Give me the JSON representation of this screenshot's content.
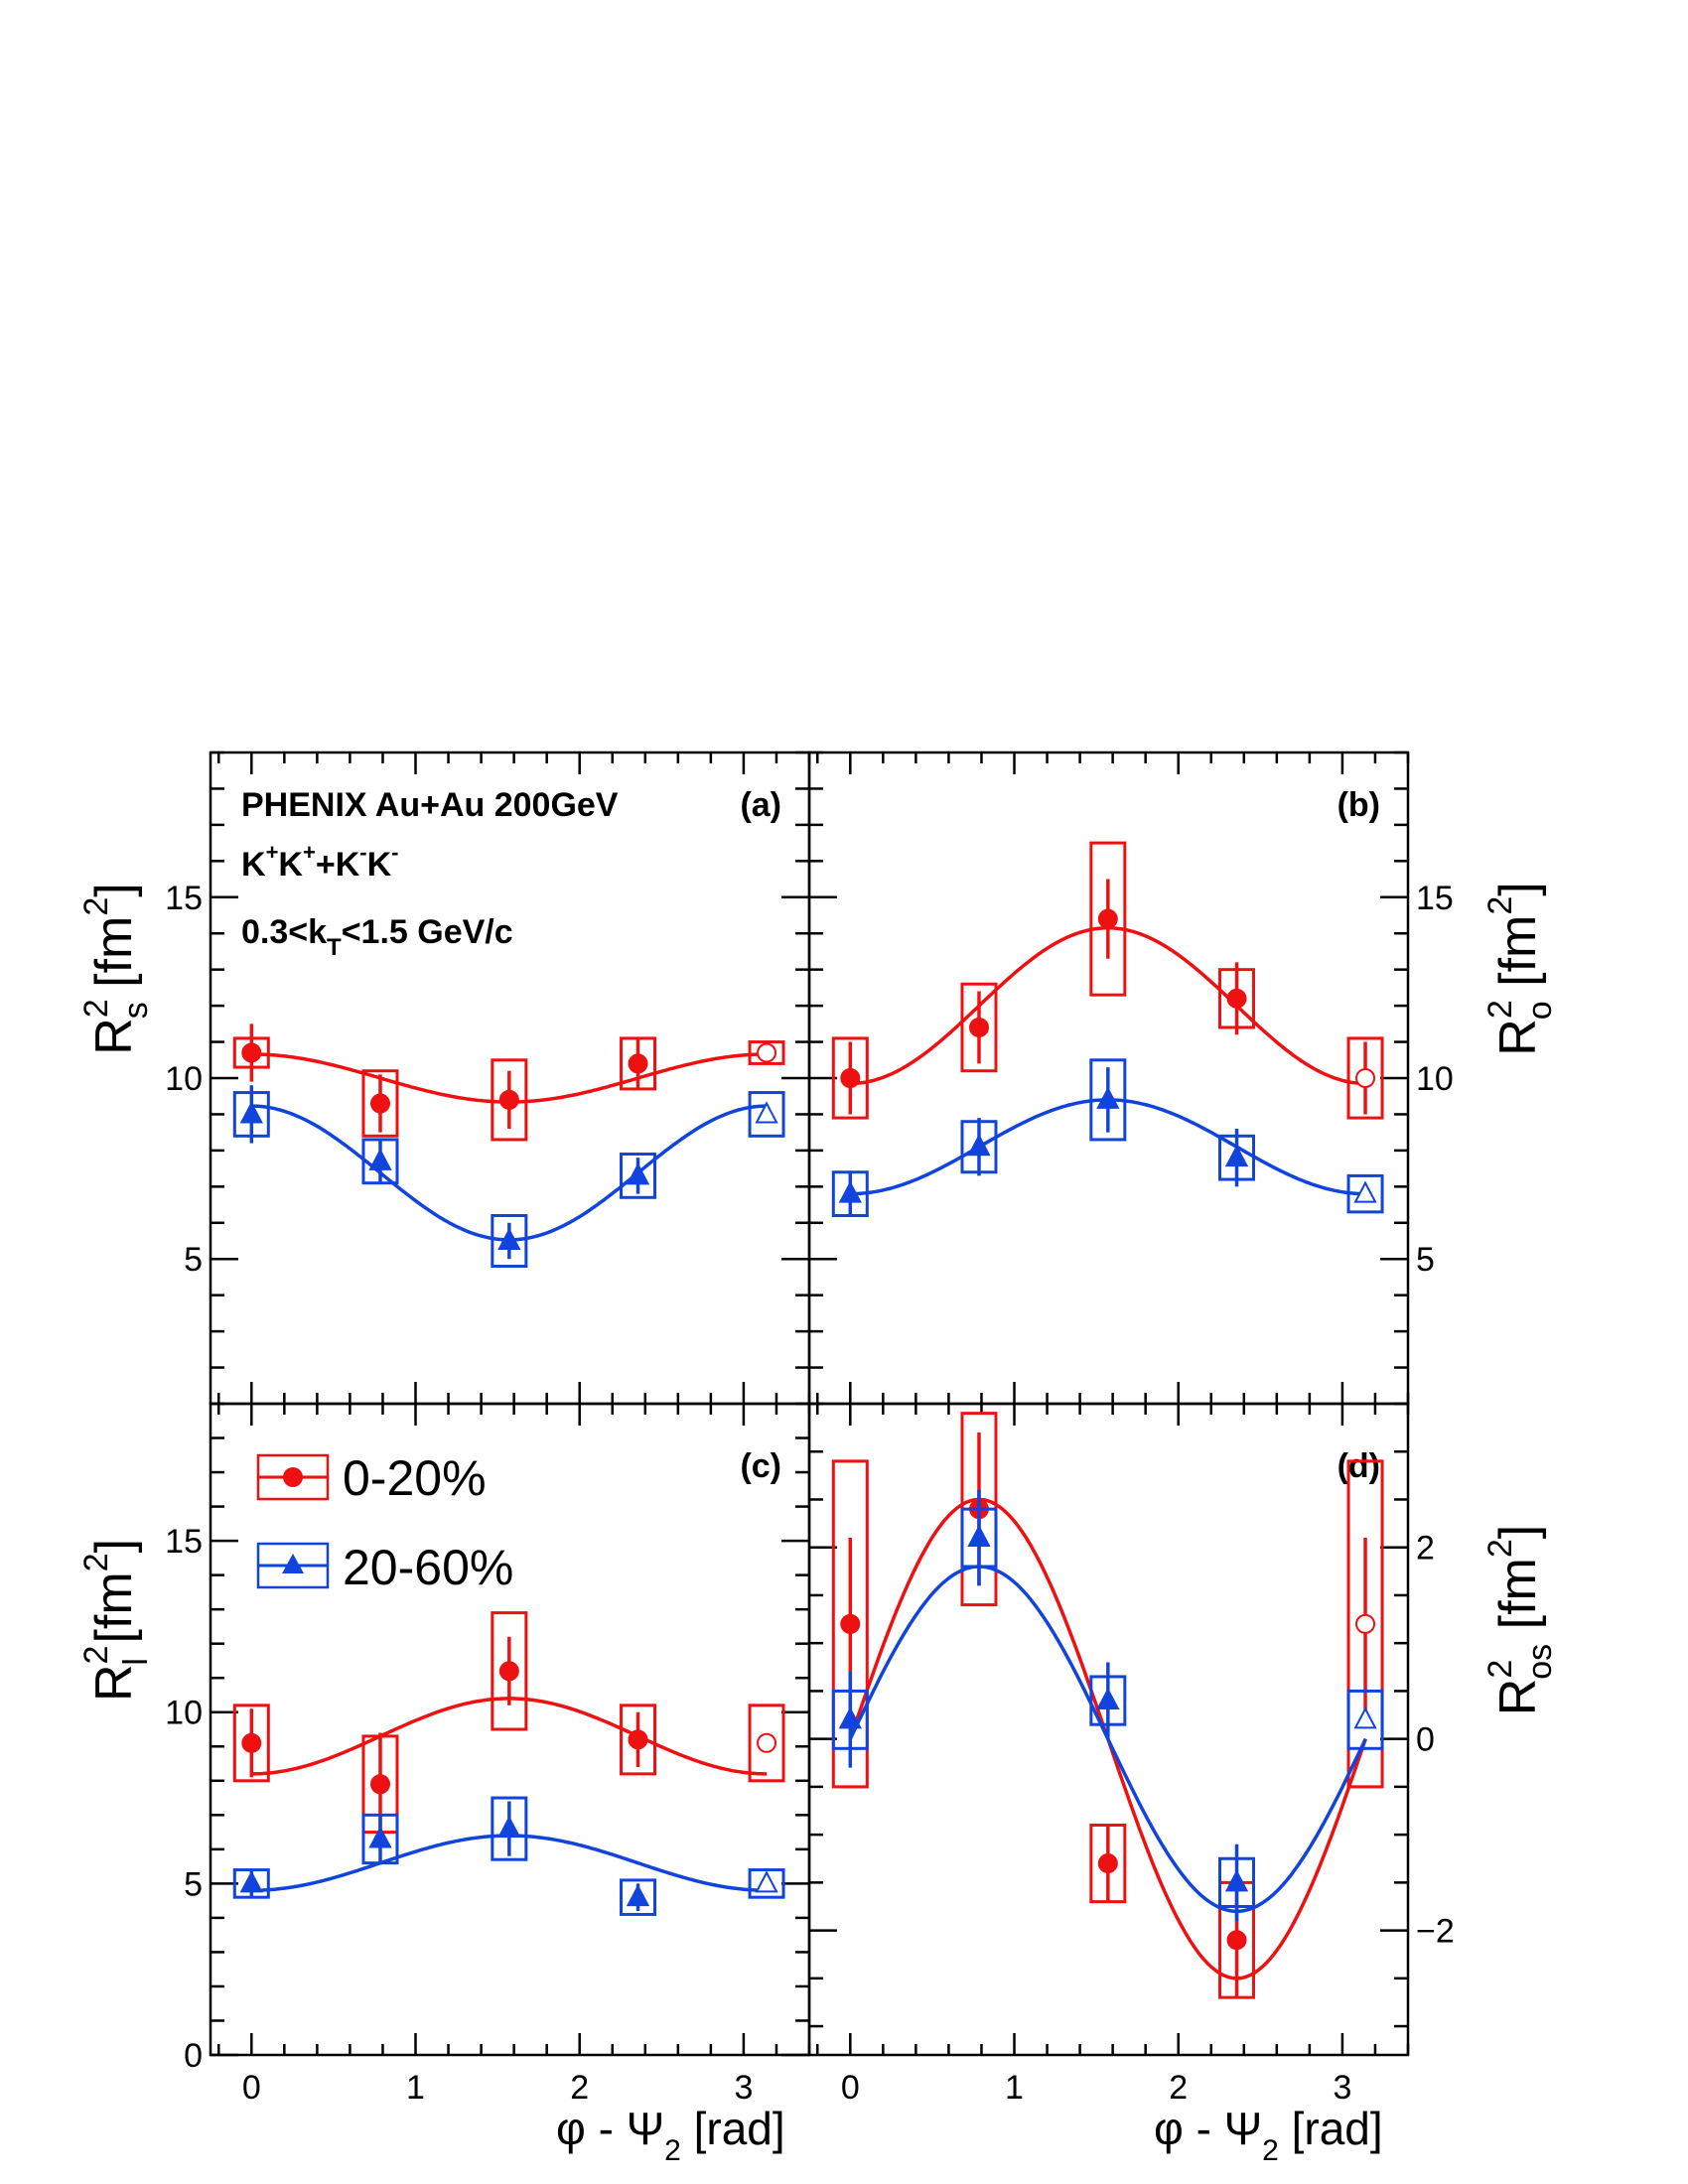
{
  "chart_data": {
    "type": "scatter",
    "x_axis": {
      "label_parts": [
        "φ - Ψ",
        "2",
        " [rad]"
      ],
      "range": [
        -0.25,
        3.4
      ],
      "ticks": [
        0,
        1,
        2,
        3
      ],
      "tick_labels": [
        "0",
        "1",
        "2",
        "3"
      ]
    },
    "colors": {
      "central": "#ee1111",
      "peripheral": "#1144dd"
    },
    "legend": {
      "placement": "top-left of panel (c)",
      "entries": [
        {
          "label": "0-20%",
          "series": "central",
          "marker": "filled-circle"
        },
        {
          "label": "20-60%",
          "series": "peripheral",
          "marker": "filled-triangle"
        }
      ]
    },
    "annotations": {
      "experiment": "PHENIX Au+Au 200GeV",
      "pair_parts": [
        "K",
        "+",
        "K",
        "+",
        "+K",
        "-",
        "K",
        "-"
      ],
      "kt_parts": [
        "0.3<k",
        "T",
        "<1.5  GeV/c"
      ]
    },
    "panels": [
      {
        "id": "a",
        "label": "(a)",
        "ylabel": {
          "main": "R",
          "sup": "2",
          "sub": "s",
          "unit": " [fm",
          "unit_sup": "2",
          "unit_close": "]"
        },
        "ylabel_side": "left",
        "ylim": [
          1,
          19
        ],
        "yticks": [
          5,
          10,
          15
        ],
        "ytick_labels": [
          "5",
          "10",
          "15"
        ],
        "series": [
          {
            "key": "central",
            "label": "0-20%",
            "x": [
              0,
              0.785,
              1.571,
              2.356,
              3.14
            ],
            "y": [
              10.7,
              9.3,
              9.4,
              10.4,
              10.7
            ],
            "stat_err": [
              0.8,
              0.8,
              0.8,
              0.7,
              0
            ],
            "sys_err": [
              0.4,
              0.9,
              1.1,
              0.7,
              0.3
            ],
            "open_last": true,
            "fit": {
              "mean": 10.0,
              "amp": 0.66
            }
          },
          {
            "key": "peripheral",
            "label": "20-60%",
            "x": [
              0,
              0.785,
              1.571,
              2.356,
              3.14
            ],
            "y": [
              9.0,
              7.7,
              5.5,
              7.3,
              9.0
            ],
            "stat_err": [
              0.8,
              0.6,
              0.5,
              0.5,
              0
            ],
            "sys_err": [
              0.6,
              0.6,
              0.7,
              0.6,
              0.6
            ],
            "open_last": true,
            "fit": {
              "mean": 7.38,
              "amp": 1.85
            }
          }
        ]
      },
      {
        "id": "b",
        "label": "(b)",
        "ylabel": {
          "main": "R",
          "sup": "2",
          "sub": "o",
          "unit": " [fm",
          "unit_sup": "2",
          "unit_close": "]"
        },
        "ylabel_side": "right",
        "ylim": [
          1,
          19
        ],
        "yticks": [
          5,
          10,
          15
        ],
        "ytick_labels": [
          "5",
          "10",
          "15"
        ],
        "series": [
          {
            "key": "central",
            "label": "0-20%",
            "x": [
              0,
              0.785,
              1.571,
              2.356,
              3.14
            ],
            "y": [
              10.0,
              11.4,
              14.4,
              12.2,
              10.0
            ],
            "stat_err": [
              1.0,
              1.0,
              1.1,
              1.0,
              1.0
            ],
            "sys_err": [
              1.1,
              1.2,
              2.1,
              0.8,
              1.1
            ],
            "open_last": true,
            "fit": {
              "mean": 12.0,
              "amp": -2.15
            }
          },
          {
            "key": "peripheral",
            "label": "20-60%",
            "x": [
              0,
              0.785,
              1.571,
              2.356,
              3.14
            ],
            "y": [
              6.8,
              8.1,
              9.4,
              7.8,
              6.8
            ],
            "stat_err": [
              0.6,
              0.8,
              0.9,
              0.8,
              0
            ],
            "sys_err": [
              0.6,
              0.7,
              1.1,
              0.6,
              0.5
            ],
            "open_last": true,
            "fit": {
              "mean": 8.1,
              "amp": -1.3
            }
          }
        ]
      },
      {
        "id": "c",
        "label": "(c)",
        "ylabel": {
          "main": "R",
          "sup": "2",
          "sub": "l",
          "unit": " [fm",
          "unit_sup": "2",
          "unit_close": "]"
        },
        "ylabel_side": "left",
        "ylim": [
          0,
          19
        ],
        "yticks": [
          0,
          5,
          10,
          15
        ],
        "ytick_labels": [
          "0",
          "5",
          "10",
          "15"
        ],
        "series": [
          {
            "key": "central",
            "label": "0-20%",
            "x": [
              0,
              0.785,
              1.571,
              2.356,
              3.14
            ],
            "y": [
              9.1,
              7.9,
              11.2,
              9.2,
              9.1
            ],
            "stat_err": [
              1.0,
              1.5,
              1.0,
              0.8,
              0
            ],
            "sys_err": [
              1.1,
              1.4,
              1.7,
              1.0,
              1.1
            ],
            "open_last": true,
            "fit": {
              "mean": 9.3,
              "amp": -1.1
            }
          },
          {
            "key": "peripheral",
            "label": "20-60%",
            "x": [
              0,
              0.785,
              1.571,
              2.356,
              3.14
            ],
            "y": [
              5.0,
              6.3,
              6.6,
              4.6,
              5.0
            ],
            "stat_err": [
              0.4,
              0.7,
              0.8,
              0.4,
              0
            ],
            "sys_err": [
              0.4,
              0.7,
              0.9,
              0.5,
              0.4
            ],
            "open_last": true,
            "fit": {
              "mean": 5.6,
              "amp": -0.8
            }
          }
        ]
      },
      {
        "id": "d",
        "label": "(d)",
        "ylabel": {
          "main": "R",
          "sup": "2",
          "sub": "os",
          "unit": " [fm",
          "unit_sup": "2",
          "unit_close": "]"
        },
        "ylabel_side": "right",
        "ylim": [
          -3.3,
          3.5
        ],
        "yticks": [
          -2,
          0,
          2
        ],
        "ytick_labels": [
          "−2",
          "0",
          "2"
        ],
        "series": [
          {
            "key": "central",
            "label": "0-20%",
            "x": [
              0,
              0.785,
              1.571,
              2.356,
              3.14
            ],
            "y": [
              1.2,
              2.4,
              -1.3,
              -2.1,
              1.2
            ],
            "stat_err": [
              0.9,
              0.8,
              0.4,
              0.6,
              0.9
            ],
            "sys_err": [
              1.7,
              1.0,
              0.4,
              0.6,
              1.7
            ],
            "open_last": true,
            "fit": {
              "amp": 2.5
            }
          },
          {
            "key": "peripheral",
            "label": "20-60%",
            "x": [
              0,
              0.785,
              1.571,
              2.356,
              3.14
            ],
            "y": [
              0.2,
              2.1,
              0.4,
              -1.5,
              0.2
            ],
            "stat_err": [
              0.5,
              0.5,
              0.4,
              0.4,
              0
            ],
            "sys_err": [
              0.3,
              0.3,
              0.25,
              0.25,
              0.3
            ],
            "open_last": true,
            "fit": {
              "amp": 1.8
            }
          }
        ]
      }
    ]
  }
}
